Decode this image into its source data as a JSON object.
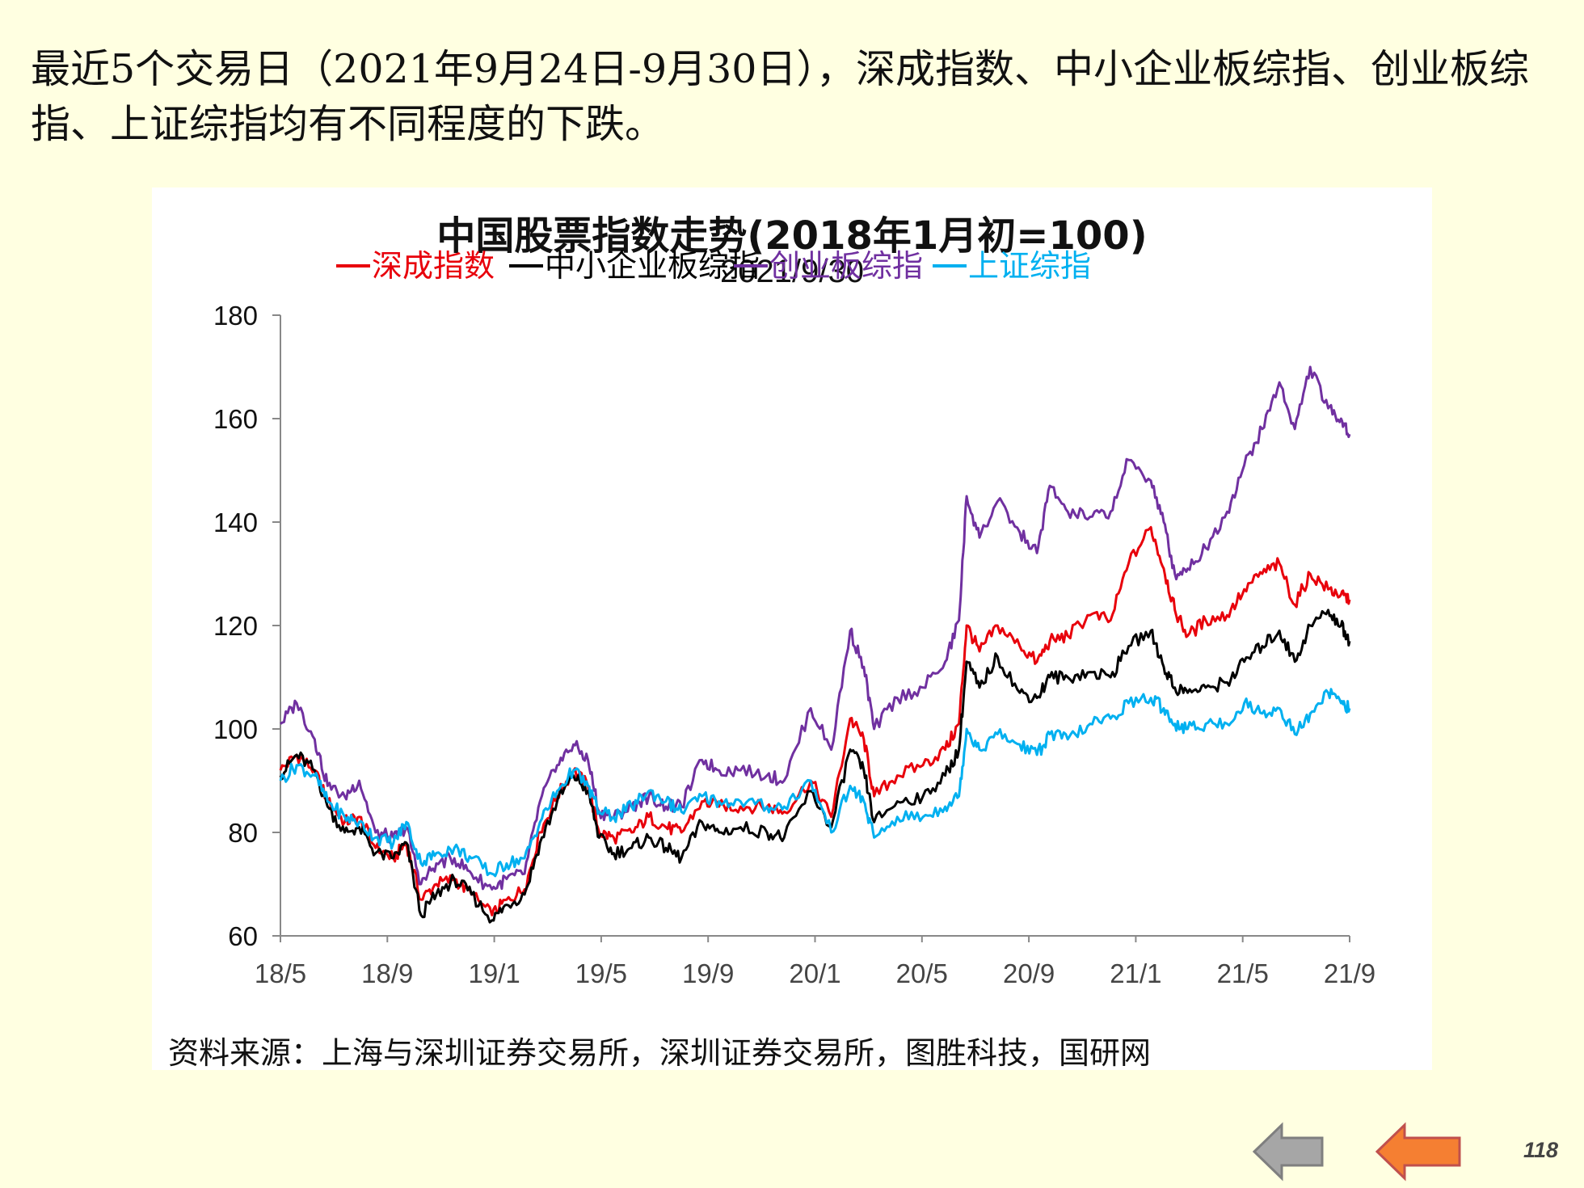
{
  "slide": {
    "headline": "最近5个交易日（2021年9月24日-9月30日），深成指数、中小企业板综指、创业板综指、上证综指均有不同程度的下跌。",
    "source": "资料来源：上海与深圳证券交易所，深圳证券交易所，图胜科技，国研网",
    "page_number": "118",
    "nav": {
      "prev_icon": "arrow-left-gray-icon",
      "next_icon": "arrow-left-orange-icon"
    }
  },
  "chart_data": {
    "type": "line",
    "title": "中国股票指数走势(2018年1月初=100)",
    "subtitle": "2021/9/30",
    "xlabel": "",
    "ylabel": "",
    "x_range": [
      "2018-05-01",
      "2021-09-30"
    ],
    "x_ticks": [
      "18/5",
      "18/9",
      "19/1",
      "19/5",
      "19/9",
      "20/1",
      "20/5",
      "20/9",
      "21/1",
      "21/5",
      "21/9"
    ],
    "ylim": [
      60,
      180
    ],
    "y_ticks": [
      60,
      80,
      100,
      120,
      140,
      160,
      180
    ],
    "grid": false,
    "legend_position": "top",
    "series": [
      {
        "name": "深成指数",
        "color": "#E8000B",
        "points": [
          [
            "2018-05-01",
            92
          ],
          [
            "2018-05-20",
            95
          ],
          [
            "2018-06-10",
            92
          ],
          [
            "2018-06-25",
            86
          ],
          [
            "2018-07-15",
            82
          ],
          [
            "2018-08-01",
            83
          ],
          [
            "2018-08-20",
            77
          ],
          [
            "2018-09-10",
            75
          ],
          [
            "2018-09-25",
            78
          ],
          [
            "2018-10-12",
            67
          ],
          [
            "2018-10-30",
            70
          ],
          [
            "2018-11-20",
            71
          ],
          [
            "2018-12-10",
            68
          ],
          [
            "2019-01-03",
            64
          ],
          [
            "2019-01-20",
            67
          ],
          [
            "2019-02-10",
            69
          ],
          [
            "2019-02-28",
            80
          ],
          [
            "2019-03-20",
            87
          ],
          [
            "2019-04-08",
            92
          ],
          [
            "2019-04-25",
            89
          ],
          [
            "2019-05-08",
            80
          ],
          [
            "2019-05-25",
            79
          ],
          [
            "2019-06-15",
            80
          ],
          [
            "2019-07-05",
            83
          ],
          [
            "2019-07-25",
            81
          ],
          [
            "2019-08-12",
            80
          ],
          [
            "2019-09-05",
            86
          ],
          [
            "2019-09-25",
            85
          ],
          [
            "2019-10-20",
            85
          ],
          [
            "2019-11-20",
            85
          ],
          [
            "2019-12-10",
            84
          ],
          [
            "2020-01-10",
            90
          ],
          [
            "2020-02-03",
            83
          ],
          [
            "2020-02-25",
            102
          ],
          [
            "2020-03-12",
            98
          ],
          [
            "2020-03-24",
            87
          ],
          [
            "2020-04-20",
            91
          ],
          [
            "2020-05-20",
            93
          ],
          [
            "2020-06-15",
            96
          ],
          [
            "2020-07-01",
            101
          ],
          [
            "2020-07-10",
            120
          ],
          [
            "2020-07-25",
            115
          ],
          [
            "2020-08-15",
            120
          ],
          [
            "2020-09-10",
            116
          ],
          [
            "2020-09-30",
            113
          ],
          [
            "2020-10-15",
            117
          ],
          [
            "2020-11-05",
            118
          ],
          [
            "2020-12-01",
            122
          ],
          [
            "2020-12-25",
            121
          ],
          [
            "2021-01-15",
            132
          ],
          [
            "2021-02-10",
            139
          ],
          [
            "2021-02-25",
            131
          ],
          [
            "2021-03-10",
            123
          ],
          [
            "2021-03-25",
            118
          ],
          [
            "2021-04-15",
            121
          ],
          [
            "2021-05-10",
            122
          ],
          [
            "2021-05-30",
            127
          ],
          [
            "2021-06-20",
            130
          ],
          [
            "2021-07-10",
            132
          ],
          [
            "2021-07-28",
            124
          ],
          [
            "2021-08-15",
            130
          ],
          [
            "2021-09-05",
            127
          ],
          [
            "2021-09-20",
            126
          ],
          [
            "2021-09-30",
            125
          ]
        ]
      },
      {
        "name": "中小企业板综指",
        "color": "#000000",
        "points": [
          [
            "2018-05-01",
            91
          ],
          [
            "2018-05-20",
            95
          ],
          [
            "2018-06-10",
            92
          ],
          [
            "2018-06-25",
            85
          ],
          [
            "2018-07-15",
            80
          ],
          [
            "2018-08-01",
            81
          ],
          [
            "2018-08-20",
            76
          ],
          [
            "2018-09-10",
            75
          ],
          [
            "2018-09-25",
            78
          ],
          [
            "2018-10-12",
            64
          ],
          [
            "2018-10-30",
            68
          ],
          [
            "2018-11-20",
            71
          ],
          [
            "2018-12-10",
            68
          ],
          [
            "2019-01-03",
            63
          ],
          [
            "2019-01-20",
            66
          ],
          [
            "2019-02-10",
            68
          ],
          [
            "2019-02-28",
            78
          ],
          [
            "2019-03-20",
            86
          ],
          [
            "2019-04-08",
            91
          ],
          [
            "2019-04-25",
            88
          ],
          [
            "2019-05-08",
            79
          ],
          [
            "2019-05-25",
            76
          ],
          [
            "2019-06-15",
            77
          ],
          [
            "2019-07-05",
            79
          ],
          [
            "2019-07-25",
            77
          ],
          [
            "2019-08-12",
            75
          ],
          [
            "2019-09-05",
            82
          ],
          [
            "2019-09-25",
            80
          ],
          [
            "2019-10-20",
            81
          ],
          [
            "2019-11-20",
            80
          ],
          [
            "2019-12-10",
            79
          ],
          [
            "2020-01-10",
            88
          ],
          [
            "2020-02-03",
            81
          ],
          [
            "2020-02-25",
            96
          ],
          [
            "2020-03-12",
            92
          ],
          [
            "2020-03-24",
            82
          ],
          [
            "2020-04-20",
            86
          ],
          [
            "2020-05-20",
            87
          ],
          [
            "2020-06-15",
            91
          ],
          [
            "2020-07-01",
            96
          ],
          [
            "2020-07-10",
            113
          ],
          [
            "2020-07-25",
            108
          ],
          [
            "2020-08-15",
            114
          ],
          [
            "2020-09-10",
            107
          ],
          [
            "2020-09-30",
            106
          ],
          [
            "2020-10-15",
            110
          ],
          [
            "2020-11-05",
            110
          ],
          [
            "2020-12-01",
            111
          ],
          [
            "2020-12-25",
            110
          ],
          [
            "2021-01-15",
            116
          ],
          [
            "2021-02-10",
            119
          ],
          [
            "2021-02-25",
            112
          ],
          [
            "2021-03-10",
            108
          ],
          [
            "2021-03-25",
            107
          ],
          [
            "2021-04-15",
            108
          ],
          [
            "2021-05-10",
            109
          ],
          [
            "2021-05-30",
            113
          ],
          [
            "2021-06-20",
            116
          ],
          [
            "2021-07-10",
            119
          ],
          [
            "2021-07-28",
            113
          ],
          [
            "2021-08-15",
            120
          ],
          [
            "2021-09-05",
            123
          ],
          [
            "2021-09-20",
            120
          ],
          [
            "2021-09-30",
            117
          ]
        ]
      },
      {
        "name": "创业板综指",
        "color": "#7030A0",
        "points": [
          [
            "2018-05-01",
            101
          ],
          [
            "2018-05-20",
            105
          ],
          [
            "2018-06-10",
            98
          ],
          [
            "2018-06-25",
            89
          ],
          [
            "2018-07-15",
            87
          ],
          [
            "2018-08-01",
            90
          ],
          [
            "2018-08-20",
            80
          ],
          [
            "2018-09-10",
            79
          ],
          [
            "2018-09-25",
            81
          ],
          [
            "2018-10-12",
            70
          ],
          [
            "2018-10-30",
            74
          ],
          [
            "2018-11-20",
            75
          ],
          [
            "2018-12-10",
            72
          ],
          [
            "2019-01-03",
            69
          ],
          [
            "2019-01-20",
            71
          ],
          [
            "2019-02-10",
            72
          ],
          [
            "2019-02-28",
            86
          ],
          [
            "2019-03-20",
            93
          ],
          [
            "2019-04-08",
            97
          ],
          [
            "2019-04-25",
            94
          ],
          [
            "2019-05-08",
            84
          ],
          [
            "2019-05-25",
            83
          ],
          [
            "2019-06-15",
            85
          ],
          [
            "2019-07-05",
            87
          ],
          [
            "2019-07-25",
            85
          ],
          [
            "2019-08-12",
            85
          ],
          [
            "2019-09-05",
            94
          ],
          [
            "2019-09-25",
            92
          ],
          [
            "2019-10-20",
            92
          ],
          [
            "2019-11-20",
            91
          ],
          [
            "2019-12-10",
            90
          ],
          [
            "2020-01-10",
            104
          ],
          [
            "2020-02-03",
            96
          ],
          [
            "2020-02-25",
            119
          ],
          [
            "2020-03-12",
            112
          ],
          [
            "2020-03-24",
            100
          ],
          [
            "2020-04-20",
            106
          ],
          [
            "2020-05-20",
            108
          ],
          [
            "2020-06-15",
            113
          ],
          [
            "2020-07-01",
            121
          ],
          [
            "2020-07-10",
            145
          ],
          [
            "2020-07-25",
            137
          ],
          [
            "2020-08-15",
            144
          ],
          [
            "2020-09-10",
            138
          ],
          [
            "2020-09-30",
            134
          ],
          [
            "2020-10-15",
            147
          ],
          [
            "2020-11-05",
            142
          ],
          [
            "2020-12-01",
            141
          ],
          [
            "2020-12-25",
            142
          ],
          [
            "2021-01-15",
            152
          ],
          [
            "2021-02-10",
            148
          ],
          [
            "2021-02-25",
            140
          ],
          [
            "2021-03-10",
            130
          ],
          [
            "2021-03-25",
            131
          ],
          [
            "2021-04-15",
            135
          ],
          [
            "2021-05-10",
            142
          ],
          [
            "2021-05-30",
            151
          ],
          [
            "2021-06-20",
            158
          ],
          [
            "2021-07-10",
            167
          ],
          [
            "2021-07-28",
            158
          ],
          [
            "2021-08-15",
            170
          ],
          [
            "2021-09-05",
            162
          ],
          [
            "2021-09-20",
            160
          ],
          [
            "2021-09-30",
            157
          ]
        ]
      },
      {
        "name": "上证综指",
        "color": "#00B0F0",
        "points": [
          [
            "2018-05-01",
            90
          ],
          [
            "2018-05-20",
            93
          ],
          [
            "2018-06-10",
            91
          ],
          [
            "2018-06-25",
            86
          ],
          [
            "2018-07-15",
            83
          ],
          [
            "2018-08-01",
            82
          ],
          [
            "2018-08-20",
            79
          ],
          [
            "2018-09-10",
            78
          ],
          [
            "2018-09-25",
            82
          ],
          [
            "2018-10-12",
            74
          ],
          [
            "2018-10-30",
            76
          ],
          [
            "2018-11-20",
            77
          ],
          [
            "2018-12-10",
            75
          ],
          [
            "2019-01-03",
            72
          ],
          [
            "2019-01-20",
            74
          ],
          [
            "2019-02-10",
            75
          ],
          [
            "2019-02-28",
            82
          ],
          [
            "2019-03-20",
            88
          ],
          [
            "2019-04-08",
            92
          ],
          [
            "2019-04-25",
            89
          ],
          [
            "2019-05-08",
            84
          ],
          [
            "2019-05-25",
            83
          ],
          [
            "2019-06-15",
            85
          ],
          [
            "2019-07-05",
            88
          ],
          [
            "2019-07-25",
            86
          ],
          [
            "2019-08-12",
            84
          ],
          [
            "2019-09-05",
            87
          ],
          [
            "2019-09-25",
            86
          ],
          [
            "2019-10-20",
            86
          ],
          [
            "2019-11-20",
            85
          ],
          [
            "2019-12-10",
            85
          ],
          [
            "2020-01-10",
            90
          ],
          [
            "2020-02-03",
            80
          ],
          [
            "2020-02-25",
            89
          ],
          [
            "2020-03-12",
            86
          ],
          [
            "2020-03-24",
            79
          ],
          [
            "2020-04-20",
            83
          ],
          [
            "2020-05-20",
            83
          ],
          [
            "2020-06-15",
            85
          ],
          [
            "2020-07-01",
            87
          ],
          [
            "2020-07-10",
            100
          ],
          [
            "2020-07-25",
            96
          ],
          [
            "2020-08-15",
            99
          ],
          [
            "2020-09-10",
            97
          ],
          [
            "2020-09-30",
            95
          ],
          [
            "2020-10-15",
            99
          ],
          [
            "2020-11-05",
            98
          ],
          [
            "2020-12-01",
            101
          ],
          [
            "2020-12-25",
            102
          ],
          [
            "2021-01-15",
            105
          ],
          [
            "2021-02-10",
            106
          ],
          [
            "2021-02-25",
            104
          ],
          [
            "2021-03-10",
            101
          ],
          [
            "2021-03-25",
            100
          ],
          [
            "2021-04-15",
            101
          ],
          [
            "2021-05-10",
            101
          ],
          [
            "2021-05-30",
            105
          ],
          [
            "2021-06-20",
            103
          ],
          [
            "2021-07-10",
            104
          ],
          [
            "2021-07-28",
            99
          ],
          [
            "2021-08-15",
            103
          ],
          [
            "2021-09-05",
            107
          ],
          [
            "2021-09-20",
            105
          ],
          [
            "2021-09-30",
            104
          ]
        ]
      }
    ]
  }
}
